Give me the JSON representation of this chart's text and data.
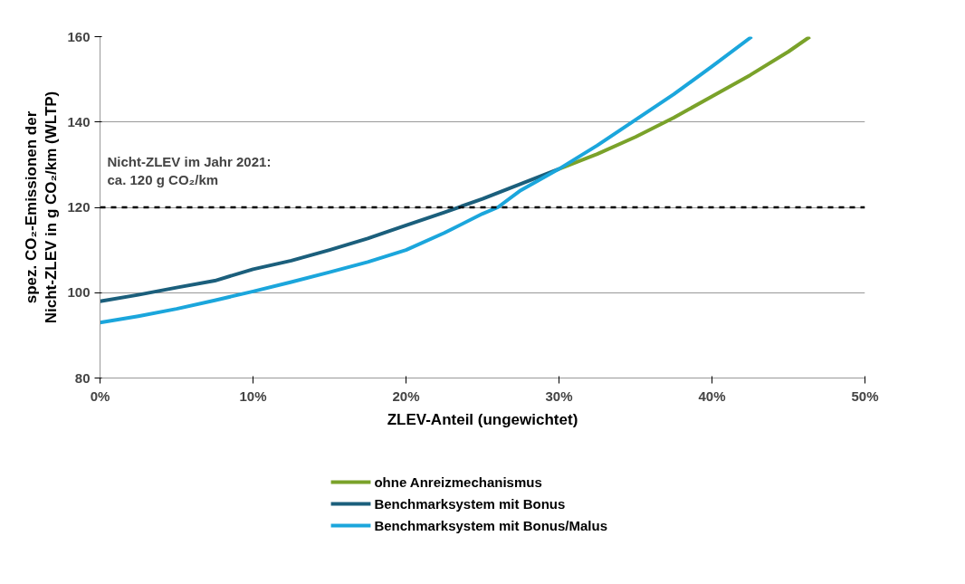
{
  "chart_data": {
    "type": "line",
    "xlabel": "ZLEV-Anteil (ungewichtet)",
    "ylabel": "spez. CO₂-Emissionen der Nicht-ZLEV in g CO₂/km (WLTP)",
    "xlim": [
      0,
      50
    ],
    "xticks": [
      {
        "value": 0,
        "label": "0%"
      },
      {
        "value": 10,
        "label": "10%"
      },
      {
        "value": 20,
        "label": "20%"
      },
      {
        "value": 30,
        "label": "30%"
      },
      {
        "value": 40,
        "label": "40%"
      },
      {
        "value": 50,
        "label": "50%"
      }
    ],
    "ylim": [
      80,
      160
    ],
    "yticks": [
      80,
      100,
      120,
      140,
      160
    ],
    "grid": "y",
    "legend": "bottom",
    "marker": "none",
    "line_style": "solid",
    "series": [
      {
        "name": "ohne Anreizmechanismus",
        "color": "#7aa22a",
        "x": [
          30,
          32.5,
          35,
          37.5,
          40,
          42.5,
          45,
          46.4
        ],
        "values": [
          129,
          132.5,
          136.5,
          141,
          146,
          151,
          156.5,
          160
        ]
      },
      {
        "name": "Benchmarksystem mit Bonus",
        "color": "#1b5f7c",
        "x": [
          0,
          2.5,
          5,
          7.5,
          10,
          12.5,
          15,
          17.5,
          20,
          22.5,
          25,
          27.5,
          30
        ],
        "values": [
          98,
          99.5,
          101.2,
          102.8,
          105.5,
          107.5,
          110,
          112.7,
          115.8,
          118.8,
          122,
          125.5,
          129
        ]
      },
      {
        "name": "Benchmarksystem mit Bonus/Malus",
        "color": "#1ba6dc",
        "x": [
          0,
          2.5,
          5,
          7.5,
          10,
          12.5,
          15,
          17.5,
          20,
          22.5,
          25,
          26,
          27.5,
          30,
          32.5,
          35,
          37.5,
          40,
          42.6
        ],
        "values": [
          93,
          94.5,
          96.2,
          98.2,
          100.3,
          102.5,
          104.8,
          107.2,
          110,
          114,
          118.5,
          120,
          124,
          129,
          134.5,
          140.5,
          146.5,
          153,
          160
        ]
      }
    ],
    "ref_lines": [
      {
        "axis": "y",
        "value": 120,
        "label": "Nicht-ZLEV im Jahr 2021:\nca. 120 g CO₂/km",
        "color": "#000000",
        "line_style": "dashed"
      }
    ]
  }
}
